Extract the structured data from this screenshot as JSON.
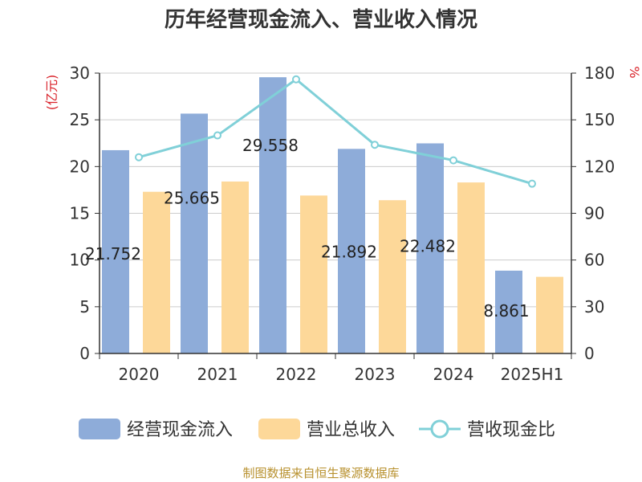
{
  "title": "历年经营现金流入、营业收入情况",
  "source": "制图数据来自恒生聚源数据库",
  "colors": {
    "cash_bar": "#8eacd9",
    "revenue_bar": "#fdd899",
    "ratio_line": "#80d0d8",
    "unit_label": "#d9222a",
    "axis": "#333333",
    "grid": "#cccccc"
  },
  "chart_data": {
    "type": "bar",
    "title": "历年经营现金流入、营业收入情况",
    "categories": [
      "2020",
      "2021",
      "2022",
      "2023",
      "2024",
      "2025H1"
    ],
    "y_left_label": "(亿元)",
    "y_right_label": "%",
    "y_left_range": [
      0,
      30
    ],
    "y_left_ticks": [
      "0",
      "5",
      "10",
      "15",
      "20",
      "25",
      "30"
    ],
    "y_right_range": [
      0,
      180
    ],
    "y_right_ticks": [
      "0",
      "30",
      "60",
      "90",
      "120",
      "150",
      "180"
    ],
    "grid": true,
    "legend_position": "bottom",
    "series": [
      {
        "name": "经营现金流入",
        "type": "bar",
        "axis": "left",
        "values": [
          21.752,
          25.665,
          29.558,
          21.892,
          22.482,
          8.861
        ],
        "labels": [
          "21.752",
          "25.665",
          "29.558",
          "21.892",
          "22.482",
          "8.861"
        ]
      },
      {
        "name": "营业总收入",
        "type": "bar",
        "axis": "left",
        "values": [
          17.3,
          18.4,
          16.9,
          16.4,
          18.3,
          8.2
        ]
      },
      {
        "name": "营收现金比",
        "type": "line",
        "axis": "right",
        "values": [
          126,
          140,
          176,
          134,
          124,
          109
        ]
      }
    ]
  }
}
